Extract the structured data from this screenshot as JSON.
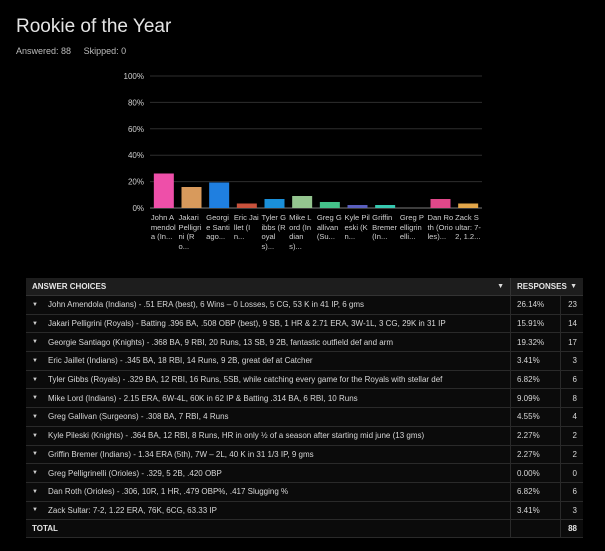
{
  "page": {
    "title": "Rookie of the Year",
    "answered": "Answered: 88",
    "skipped": "Skipped: 0"
  },
  "chart_data": {
    "type": "bar",
    "title": "",
    "xlabel": "",
    "ylabel": "",
    "ylim": [
      0,
      100
    ],
    "yticks": [
      "100%",
      "80%",
      "60%",
      "40%",
      "20%",
      "0%"
    ],
    "grid": true,
    "categories": [
      "John Amendola (In...",
      "Jakari Pelligrini (Ro...",
      "Georgie Santiago...",
      "Eric Jaillet (In...",
      "Tyler Gibbs (Royals)...",
      "Mike Lord (Indians)...",
      "Greg Gallivan (Su...",
      "Kyle Pileski (Kn...",
      "Griffin Bremer (In...",
      "Greg Pelligrinelli...",
      "Dan Roth (Orioles)...",
      "Zack Sultar: 7-2, 1.2..."
    ],
    "values": [
      26.14,
      15.91,
      19.32,
      3.41,
      6.82,
      9.09,
      4.55,
      2.27,
      2.27,
      0.0,
      6.82,
      3.41
    ],
    "colors": [
      "#ee4fa9",
      "#d89a5c",
      "#1f7fe0",
      "#c9523c",
      "#1a8fd8",
      "#94c58f",
      "#44c28a",
      "#5a5fbe",
      "#37c8b0",
      "#8a8a8a",
      "#e0488a",
      "#e2a64a"
    ]
  },
  "table": {
    "header_choice": "ANSWER CHOICES",
    "header_responses": "RESPONSES",
    "rows": [
      {
        "choice": "John Amendola (Indians) - .51 ERA (best), 6 Wins – 0 Losses, 5 CG, 53 K in 41 IP, 6 gms",
        "pct": "26.14%",
        "count": "23"
      },
      {
        "choice": "Jakari Pelligrini (Royals) - Batting .396 BA, .508 OBP (best), 9 SB, 1 HR & 2.71 ERA, 3W-1L, 3 CG, 29K in 31 IP",
        "pct": "15.91%",
        "count": "14"
      },
      {
        "choice": "Georgie Santiago (Knights) - .368 BA, 9 RBI, 20 Runs, 13 SB, 9 2B, fantastic outfield def and arm",
        "pct": "19.32%",
        "count": "17"
      },
      {
        "choice": "Eric Jaillet (Indians) - .345 BA, 18 RBI, 14 Runs, 9 2B, great def at Catcher",
        "pct": "3.41%",
        "count": "3"
      },
      {
        "choice": "Tyler Gibbs (Royals) - .329 BA, 12 RBI, 16 Runs, 5SB, while catching every game for the Royals with stellar def",
        "pct": "6.82%",
        "count": "6"
      },
      {
        "choice": "Mike Lord (Indians) - 2.15 ERA, 6W-4L, 60K in 62 IP & Batting .314 BA, 6 RBI, 10 Runs",
        "pct": "9.09%",
        "count": "8"
      },
      {
        "choice": "Greg Gallivan (Surgeons) - .308 BA, 7 RBI, 4 Runs",
        "pct": "4.55%",
        "count": "4"
      },
      {
        "choice": "Kyle Pileski (Knights) - .364 BA, 12 RBI, 8 Runs, HR in only ½ of a season after starting mid june (13 gms)",
        "pct": "2.27%",
        "count": "2"
      },
      {
        "choice": "Griffin Bremer (Indians) - 1.34 ERA (5th), 7W – 2L, 40 K in 31 1/3 IP, 9 gms",
        "pct": "2.27%",
        "count": "2"
      },
      {
        "choice": "Greg Pelligrinelli (Orioles) - .329, 5 2B, .420 OBP",
        "pct": "0.00%",
        "count": "0"
      },
      {
        "choice": "Dan Roth (Orioles) - .306, 10R, 1 HR, .479 OBP%, .417 Slugging %",
        "pct": "6.82%",
        "count": "6"
      },
      {
        "choice": "Zack Sultar: 7-2, 1.22 ERA, 76K, 6CG, 63.33 IP",
        "pct": "3.41%",
        "count": "3"
      }
    ],
    "total_label": "TOTAL",
    "total_value": "88"
  }
}
